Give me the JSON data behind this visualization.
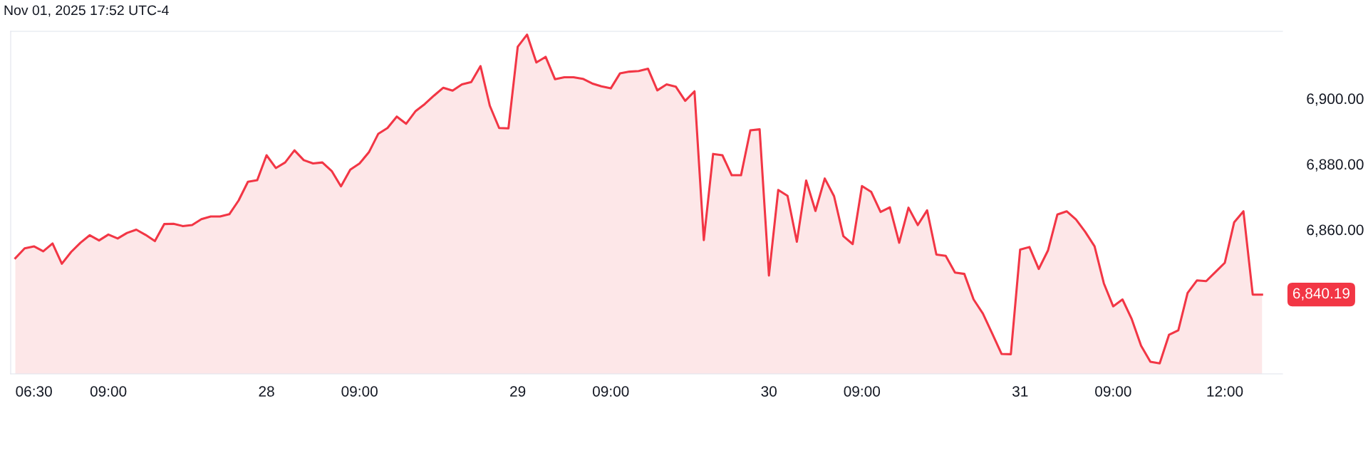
{
  "chart_data": {
    "type": "area",
    "categories": [
      null,
      null,
      "06:30",
      null,
      null,
      null,
      null,
      null,
      null,
      null,
      "09:00",
      null,
      null,
      null,
      null,
      null,
      null,
      null,
      null,
      null,
      null,
      null,
      null,
      null,
      null,
      null,
      null,
      "28",
      null,
      null,
      null,
      null,
      null,
      null,
      null,
      null,
      null,
      "09:00",
      null,
      null,
      null,
      null,
      null,
      null,
      null,
      null,
      null,
      null,
      null,
      null,
      null,
      null,
      null,
      null,
      "29",
      null,
      null,
      null,
      null,
      null,
      null,
      null,
      null,
      null,
      "09:00",
      null,
      null,
      null,
      null,
      null,
      null,
      null,
      null,
      null,
      null,
      null,
      null,
      null,
      null,
      null,
      null,
      "30",
      null,
      null,
      null,
      null,
      null,
      null,
      null,
      null,
      null,
      "09:00",
      null,
      null,
      null,
      null,
      null,
      null,
      null,
      null,
      null,
      null,
      null,
      null,
      null,
      null,
      null,
      null,
      "31",
      null,
      null,
      null,
      null,
      null,
      null,
      null,
      null,
      null,
      "09:00",
      null,
      null,
      null,
      null,
      null,
      null,
      null,
      null,
      null,
      null,
      null,
      "12:00",
      null,
      null,
      null,
      null
    ],
    "series": [
      {
        "color": "#f23645",
        "values": [
          6851.3,
          6854.3,
          6854.9,
          6853.4,
          6855.8,
          6849.6,
          6853.2,
          6856.0,
          6858.3,
          6856.7,
          6858.5,
          6857.3,
          6859.0,
          6860.0,
          6858.4,
          6856.5,
          6861.7,
          6861.8,
          6861.1,
          6861.4,
          6863.2,
          6864.0,
          6864.0,
          6864.7,
          6868.9,
          6874.6,
          6875.1,
          6882.7,
          6878.8,
          6880.5,
          6884.2,
          6881.2,
          6880.2,
          6880.5,
          6877.9,
          6873.2,
          6878.3,
          6880.2,
          6883.6,
          6889.2,
          6891.0,
          6894.5,
          6892.3,
          6896.1,
          6898.3,
          6900.9,
          6903.3,
          6902.4,
          6904.3,
          6905.0,
          6909.9,
          6897.8,
          6891.0,
          6890.9,
          6915.8,
          6919.5,
          6911.0,
          6912.7,
          6905.9,
          6906.5,
          6906.5,
          6906.0,
          6904.6,
          6903.7,
          6903.1,
          6907.7,
          6908.2,
          6908.4,
          6909.1,
          6902.5,
          6904.3,
          6903.6,
          6899.3,
          6902.2,
          6856.8,
          6883.1,
          6882.7,
          6876.6,
          6876.6,
          6890.3,
          6890.6,
          6846.0,
          6872.1,
          6870.3,
          6856.3,
          6875.0,
          6865.7,
          6875.6,
          6870.2,
          6858.0,
          6855.6,
          6873.3,
          6871.5,
          6865.4,
          6866.8,
          6856.0,
          6866.7,
          6861.4,
          6865.9,
          6852.4,
          6852.0,
          6846.9,
          6846.5,
          6838.7,
          6834.4,
          6828.3,
          6822.1,
          6822.0,
          6853.9,
          6854.7,
          6848.0,
          6853.7,
          6864.6,
          6865.6,
          6863.1,
          6859.3,
          6854.9,
          6843.6,
          6836.6,
          6838.7,
          6832.7,
          6824.6,
          6819.7,
          6819.2,
          6827.9,
          6829.3,
          6840.7,
          6844.5,
          6844.3,
          6847.1,
          6849.9,
          6862.2,
          6865.6,
          6840.19,
          6840.19
        ]
      }
    ],
    "ylim": [
      6816,
      6920.5
    ],
    "yticks": [
      {
        "value": 6860,
        "label": "6,860.00"
      },
      {
        "value": 6880,
        "label": "6,880.00"
      },
      {
        "value": 6900,
        "label": "6,900.00"
      }
    ],
    "grid": false,
    "annotations": [
      "Nov 01, 2025 17:52 UTC-4",
      "6,840.19"
    ]
  }
}
